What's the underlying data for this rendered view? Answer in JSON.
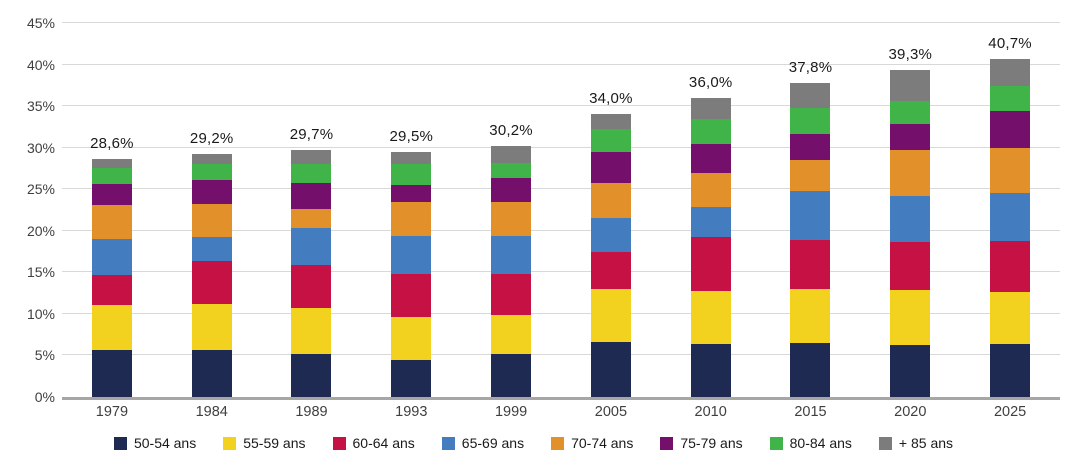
{
  "chart_data": {
    "type": "bar",
    "stacked": true,
    "title": "",
    "xlabel": "",
    "ylabel": "",
    "categories": [
      "1979",
      "1984",
      "1989",
      "1993",
      "1999",
      "2005",
      "2010",
      "2015",
      "2020",
      "2025"
    ],
    "series": [
      {
        "name": "50-54 ans",
        "color": "#1e2a52",
        "values": [
          5.7,
          5.6,
          5.2,
          4.5,
          5.2,
          6.6,
          6.4,
          6.5,
          6.3,
          6.4
        ]
      },
      {
        "name": "55-59 ans",
        "color": "#f2d21f",
        "values": [
          5.4,
          5.6,
          5.5,
          5.1,
          4.7,
          6.4,
          6.4,
          6.5,
          6.6,
          6.2
        ]
      },
      {
        "name": "60-64 ans",
        "color": "#c51144",
        "values": [
          3.6,
          5.2,
          5.2,
          5.2,
          4.9,
          4.4,
          6.4,
          5.9,
          5.8,
          6.2
        ]
      },
      {
        "name": "65-69 ans",
        "color": "#447cc0",
        "values": [
          4.3,
          2.9,
          4.4,
          4.6,
          4.6,
          4.2,
          3.7,
          5.9,
          5.5,
          5.7
        ]
      },
      {
        "name": "70-74 ans",
        "color": "#e2912a",
        "values": [
          4.1,
          3.9,
          2.3,
          4.1,
          4.1,
          4.2,
          4.0,
          3.7,
          5.5,
          5.5
        ]
      },
      {
        "name": "75-79 ans",
        "color": "#740f6b",
        "values": [
          2.5,
          2.9,
          3.2,
          2.0,
          2.9,
          3.7,
          3.6,
          3.1,
          3.1,
          4.4
        ]
      },
      {
        "name": "80-84 ans",
        "color": "#41b449",
        "values": [
          2.0,
          1.9,
          2.3,
          2.5,
          1.8,
          2.7,
          2.9,
          3.2,
          2.8,
          3.0
        ]
      },
      {
        "name": "+ 85 ans",
        "color": "#7c7c7c",
        "values": [
          1.0,
          1.2,
          1.6,
          1.5,
          2.0,
          1.8,
          2.6,
          3.0,
          3.7,
          3.3
        ]
      }
    ],
    "totals": [
      28.6,
      29.2,
      29.7,
      29.5,
      30.2,
      34.0,
      36.0,
      37.8,
      39.3,
      40.7
    ],
    "totals_display": [
      "28,6%",
      "29,2%",
      "29,7%",
      "29,5%",
      "30,2%",
      "34,0%",
      "36,0%",
      "37,8%",
      "39,3%",
      "40,7%"
    ],
    "y_axis": {
      "min": 0,
      "max": 45,
      "step": 5,
      "tick_labels": [
        "0%",
        "5%",
        "10%",
        "15%",
        "20%",
        "25%",
        "30%",
        "35%",
        "40%",
        "45%"
      ]
    },
    "grid": true,
    "gridline_color": "#d9d9d9",
    "axis_color": "#a6a6a6",
    "legend_position": "bottom",
    "legend_labels": [
      "50-54 ans",
      "55-59 ans",
      "60-64 ans",
      "65-69 ans",
      "70-74 ans",
      "75-79 ans",
      "80-84 ans",
      "+ 85 ans"
    ]
  }
}
